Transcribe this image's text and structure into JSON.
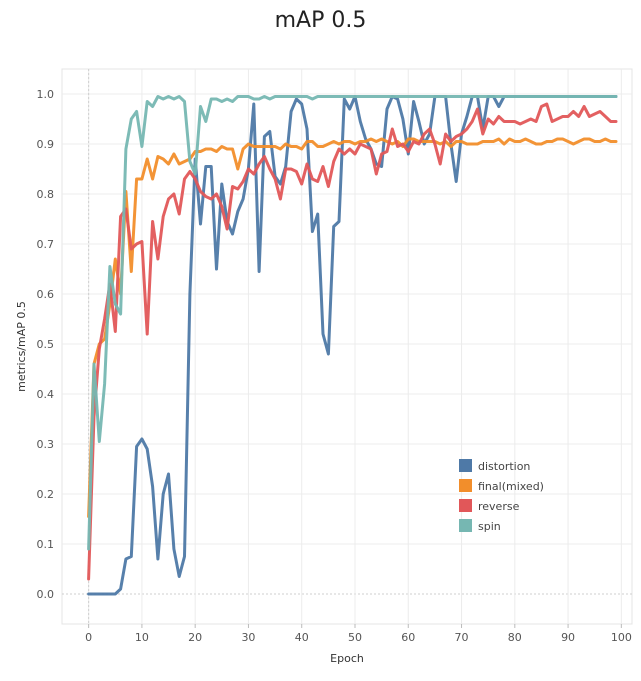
{
  "chart_data": {
    "type": "line",
    "title": "mAP 0.5",
    "xlabel": "Epoch",
    "ylabel": "metrics/mAP 0.5",
    "xlim": [
      -5,
      102
    ],
    "ylim": [
      -0.06,
      1.05
    ],
    "xticks": [
      0,
      10,
      20,
      30,
      40,
      50,
      60,
      70,
      80,
      90,
      100
    ],
    "yticks": [
      0.0,
      0.1,
      0.2,
      0.3,
      0.4,
      0.5,
      0.6,
      0.7,
      0.8,
      0.9,
      1.0
    ],
    "grid": true,
    "legend_position": "bottom-right",
    "series": [
      {
        "name": "distortion",
        "color": "#4e79a7",
        "x": [
          0,
          1,
          2,
          3,
          4,
          5,
          6,
          7,
          8,
          9,
          10,
          11,
          12,
          13,
          14,
          15,
          16,
          17,
          18,
          19,
          20,
          21,
          22,
          23,
          24,
          25,
          26,
          27,
          28,
          29,
          30,
          31,
          32,
          33,
          34,
          35,
          36,
          37,
          38,
          39,
          40,
          41,
          42,
          43,
          44,
          45,
          46,
          47,
          48,
          49,
          50,
          51,
          52,
          53,
          54,
          55,
          56,
          57,
          58,
          59,
          60,
          61,
          62,
          63,
          64,
          65,
          66,
          67,
          68,
          69,
          70,
          71,
          72,
          73,
          74,
          75,
          76,
          77,
          78,
          79,
          80,
          81,
          82,
          83,
          84,
          85,
          86,
          87,
          88,
          89,
          90,
          91,
          92,
          93,
          94,
          95,
          96,
          97,
          98,
          99
        ],
        "values": [
          0.0,
          0.0,
          0.0,
          0.0,
          0.0,
          0.0,
          0.01,
          0.07,
          0.075,
          0.295,
          0.31,
          0.29,
          0.215,
          0.07,
          0.2,
          0.24,
          0.09,
          0.035,
          0.075,
          0.6,
          0.87,
          0.74,
          0.855,
          0.855,
          0.65,
          0.82,
          0.745,
          0.72,
          0.765,
          0.79,
          0.85,
          0.98,
          0.645,
          0.915,
          0.925,
          0.835,
          0.82,
          0.855,
          0.965,
          0.99,
          0.98,
          0.93,
          0.725,
          0.76,
          0.52,
          0.48,
          0.735,
          0.745,
          0.99,
          0.97,
          0.995,
          0.945,
          0.91,
          0.89,
          0.86,
          0.855,
          0.97,
          0.995,
          0.99,
          0.95,
          0.88,
          0.985,
          0.945,
          0.9,
          0.92,
          0.995,
          0.995,
          0.995,
          0.9,
          0.825,
          0.92,
          0.955,
          0.995,
          0.995,
          0.93,
          0.995,
          0.995,
          0.975,
          0.995,
          0.995,
          0.995,
          0.995,
          0.995,
          0.995,
          0.995,
          0.995,
          0.995,
          0.995,
          0.995,
          0.995,
          0.995,
          0.995,
          0.995,
          0.995,
          0.995,
          0.995,
          0.995,
          0.995,
          0.995,
          0.995
        ]
      },
      {
        "name": "final(mixed)",
        "color": "#f28e2b",
        "x": [
          0,
          1,
          2,
          3,
          4,
          5,
          6,
          7,
          8,
          9,
          10,
          11,
          12,
          13,
          14,
          15,
          16,
          17,
          18,
          19,
          20,
          21,
          22,
          23,
          24,
          25,
          26,
          27,
          28,
          29,
          30,
          31,
          32,
          33,
          34,
          35,
          36,
          37,
          38,
          39,
          40,
          41,
          42,
          43,
          44,
          45,
          46,
          47,
          48,
          49,
          50,
          51,
          52,
          53,
          54,
          55,
          56,
          57,
          58,
          59,
          60,
          61,
          62,
          63,
          64,
          65,
          66,
          67,
          68,
          69,
          70,
          71,
          72,
          73,
          74,
          75,
          76,
          77,
          78,
          79,
          80,
          81,
          82,
          83,
          84,
          85,
          86,
          87,
          88,
          89,
          90,
          91,
          92,
          93,
          94,
          95,
          96,
          97,
          98,
          99
        ],
        "values": [
          0.155,
          0.46,
          0.5,
          0.51,
          0.58,
          0.67,
          0.6,
          0.805,
          0.645,
          0.83,
          0.83,
          0.87,
          0.83,
          0.875,
          0.87,
          0.86,
          0.88,
          0.86,
          0.865,
          0.87,
          0.885,
          0.885,
          0.89,
          0.89,
          0.885,
          0.895,
          0.89,
          0.89,
          0.85,
          0.89,
          0.9,
          0.895,
          0.895,
          0.895,
          0.895,
          0.895,
          0.89,
          0.9,
          0.895,
          0.895,
          0.89,
          0.905,
          0.905,
          0.895,
          0.895,
          0.9,
          0.905,
          0.9,
          0.905,
          0.905,
          0.9,
          0.905,
          0.905,
          0.91,
          0.905,
          0.91,
          0.905,
          0.9,
          0.905,
          0.895,
          0.91,
          0.91,
          0.905,
          0.905,
          0.905,
          0.905,
          0.9,
          0.905,
          0.895,
          0.905,
          0.905,
          0.9,
          0.9,
          0.9,
          0.905,
          0.905,
          0.905,
          0.91,
          0.9,
          0.91,
          0.905,
          0.905,
          0.91,
          0.905,
          0.9,
          0.9,
          0.905,
          0.905,
          0.91,
          0.91,
          0.905,
          0.9,
          0.905,
          0.91,
          0.91,
          0.905,
          0.905,
          0.91,
          0.905,
          0.905
        ]
      },
      {
        "name": "reverse",
        "color": "#e15759",
        "x": [
          0,
          1,
          2,
          3,
          4,
          5,
          6,
          7,
          8,
          9,
          10,
          11,
          12,
          13,
          14,
          15,
          16,
          17,
          18,
          19,
          20,
          21,
          22,
          23,
          24,
          25,
          26,
          27,
          28,
          29,
          30,
          31,
          32,
          33,
          34,
          35,
          36,
          37,
          38,
          39,
          40,
          41,
          42,
          43,
          44,
          45,
          46,
          47,
          48,
          49,
          50,
          51,
          52,
          53,
          54,
          55,
          56,
          57,
          58,
          59,
          60,
          61,
          62,
          63,
          64,
          65,
          66,
          67,
          68,
          69,
          70,
          71,
          72,
          73,
          74,
          75,
          76,
          77,
          78,
          79,
          80,
          81,
          82,
          83,
          84,
          85,
          86,
          87,
          88,
          89,
          90,
          91,
          92,
          93,
          94,
          95,
          96,
          97,
          98,
          99
        ],
        "values": [
          0.03,
          0.355,
          0.49,
          0.55,
          0.62,
          0.525,
          0.755,
          0.77,
          0.69,
          0.7,
          0.705,
          0.52,
          0.745,
          0.67,
          0.755,
          0.79,
          0.8,
          0.76,
          0.83,
          0.845,
          0.83,
          0.805,
          0.795,
          0.79,
          0.8,
          0.775,
          0.73,
          0.815,
          0.81,
          0.825,
          0.85,
          0.84,
          0.86,
          0.875,
          0.85,
          0.83,
          0.79,
          0.85,
          0.85,
          0.845,
          0.82,
          0.86,
          0.83,
          0.825,
          0.855,
          0.815,
          0.865,
          0.89,
          0.88,
          0.89,
          0.88,
          0.9,
          0.895,
          0.89,
          0.84,
          0.88,
          0.885,
          0.93,
          0.895,
          0.9,
          0.885,
          0.905,
          0.9,
          0.92,
          0.93,
          0.9,
          0.86,
          0.92,
          0.905,
          0.915,
          0.92,
          0.93,
          0.945,
          0.97,
          0.92,
          0.95,
          0.94,
          0.955,
          0.945,
          0.945,
          0.945,
          0.94,
          0.945,
          0.95,
          0.945,
          0.975,
          0.98,
          0.945,
          0.95,
          0.955,
          0.955,
          0.965,
          0.955,
          0.975,
          0.955,
          0.96,
          0.965,
          0.955,
          0.945,
          0.945
        ]
      },
      {
        "name": "spin",
        "color": "#76b7b2",
        "x": [
          0,
          1,
          2,
          3,
          4,
          5,
          6,
          7,
          8,
          9,
          10,
          11,
          12,
          13,
          14,
          15,
          16,
          17,
          18,
          19,
          20,
          21,
          22,
          23,
          24,
          25,
          26,
          27,
          28,
          29,
          30,
          31,
          32,
          33,
          34,
          35,
          36,
          37,
          38,
          39,
          40,
          41,
          42,
          43,
          44,
          45,
          46,
          47,
          48,
          49,
          50,
          51,
          52,
          53,
          54,
          55,
          56,
          57,
          58,
          59,
          60,
          61,
          62,
          63,
          64,
          65,
          66,
          67,
          68,
          69,
          70,
          71,
          72,
          73,
          74,
          75,
          76,
          77,
          78,
          79,
          80,
          81,
          82,
          83,
          84,
          85,
          86,
          87,
          88,
          89,
          90,
          91,
          92,
          93,
          94,
          95,
          96,
          97,
          98,
          99
        ],
        "values": [
          0.09,
          0.46,
          0.305,
          0.42,
          0.655,
          0.58,
          0.56,
          0.89,
          0.95,
          0.965,
          0.895,
          0.985,
          0.975,
          0.995,
          0.99,
          0.995,
          0.99,
          0.995,
          0.985,
          0.865,
          0.84,
          0.975,
          0.945,
          0.99,
          0.99,
          0.985,
          0.99,
          0.985,
          0.995,
          0.995,
          0.995,
          0.99,
          0.99,
          0.995,
          0.99,
          0.995,
          0.995,
          0.995,
          0.995,
          0.995,
          0.995,
          0.995,
          0.99,
          0.995,
          0.995,
          0.995,
          0.995,
          0.995,
          0.995,
          0.995,
          0.995,
          0.995,
          0.995,
          0.995,
          0.995,
          0.995,
          0.995,
          0.995,
          0.995,
          0.995,
          0.995,
          0.995,
          0.995,
          0.995,
          0.995,
          0.995,
          0.995,
          0.995,
          0.995,
          0.995,
          0.995,
          0.995,
          0.995,
          0.995,
          0.995,
          0.995,
          0.995,
          0.995,
          0.995,
          0.995,
          0.995,
          0.995,
          0.995,
          0.995,
          0.995,
          0.995,
          0.995,
          0.995,
          0.995,
          0.995,
          0.995,
          0.995,
          0.995,
          0.995,
          0.995,
          0.995,
          0.995,
          0.995,
          0.995,
          0.995
        ]
      }
    ]
  }
}
